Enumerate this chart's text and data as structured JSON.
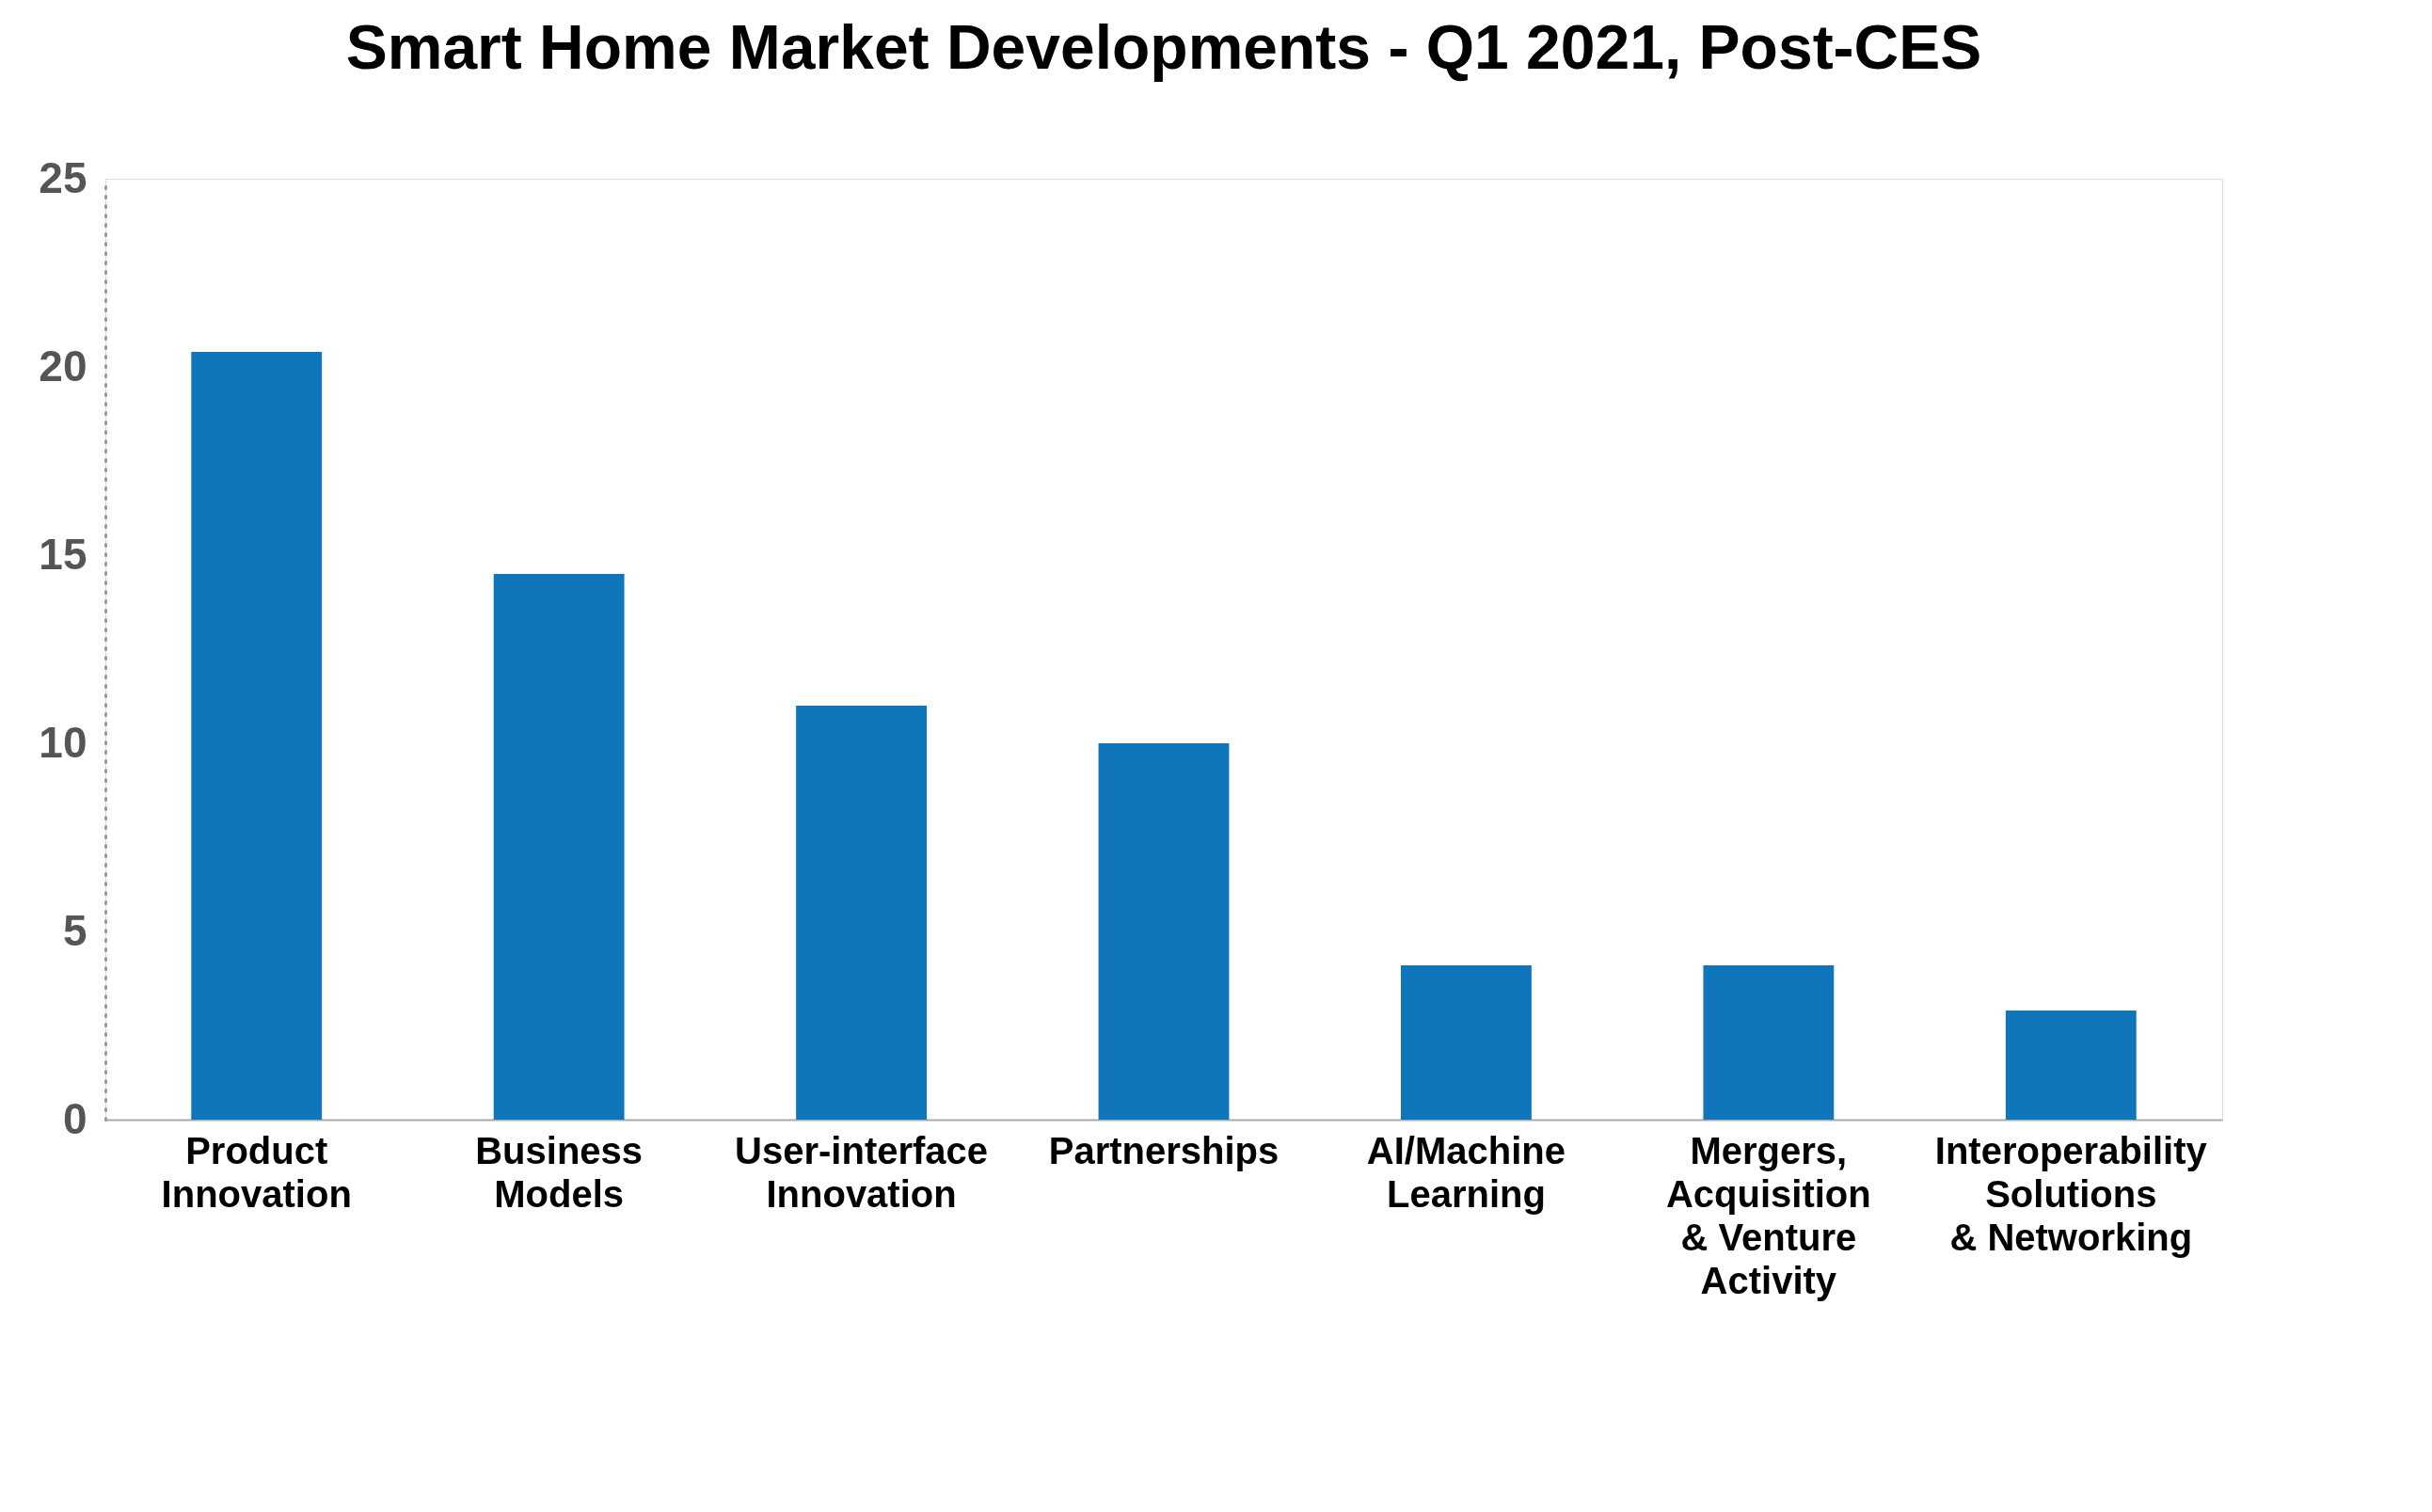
{
  "chart_data": {
    "type": "bar",
    "title": "Smart Home Market Developments - Q1 2021, Post-CES",
    "categories": [
      "Product\nInnovation",
      "Business\nModels",
      "User-interface\nInnovation",
      "Partnerships",
      "AI/Machine\nLearning",
      "Mergers,\nAcquisition\n& Venture\nActivity",
      "Interoperability\nSolutions\n& Networking"
    ],
    "values": [
      20.4,
      14.5,
      11.0,
      10.0,
      4.1,
      4.1,
      2.9
    ],
    "color": "#0f76bc",
    "ylim": [
      0,
      25
    ],
    "yticks": [
      0,
      5,
      10,
      15,
      20,
      25
    ],
    "grid": false
  }
}
